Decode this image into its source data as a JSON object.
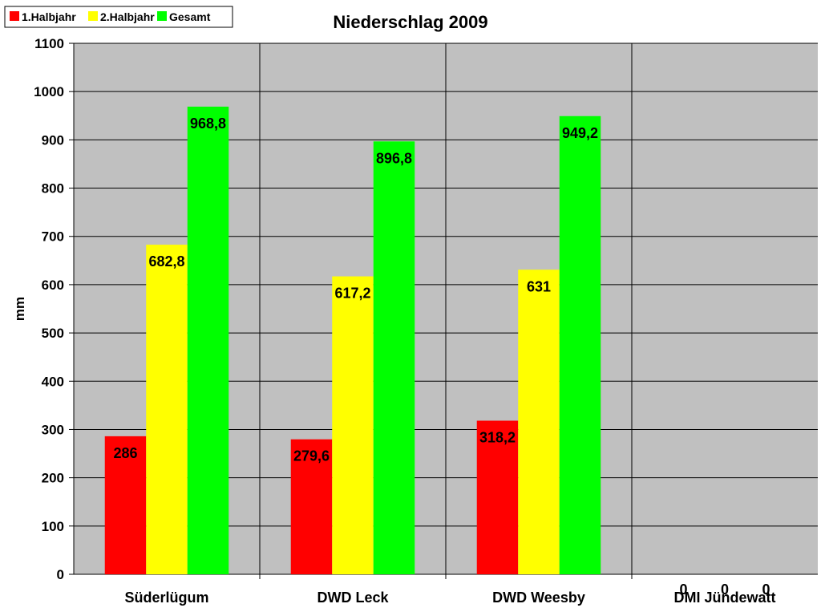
{
  "chart_data": {
    "type": "bar",
    "title": "Niederschlag 2009",
    "ylabel": "mm",
    "xlabel": "",
    "ylim": [
      0,
      1100
    ],
    "ytick_step": 100,
    "grid": true,
    "legend_position": "top-left",
    "plot_background": "#c0c0c0",
    "categories": [
      "Süderlügum",
      "DWD Leck",
      "DWD Weesby",
      "DMI Jündewatt"
    ],
    "series": [
      {
        "name": "1.Halbjahr",
        "color": "#ff0000",
        "values": [
          286,
          279.6,
          318.2,
          0
        ],
        "labels": [
          "286",
          "279,6",
          "318,2",
          "0"
        ]
      },
      {
        "name": "2.Halbjahr",
        "color": "#ffff00",
        "values": [
          682.8,
          617.2,
          631,
          0
        ],
        "labels": [
          "682,8",
          "617,2",
          "631",
          "0"
        ]
      },
      {
        "name": "Gesamt",
        "color": "#00ff00",
        "values": [
          968.8,
          896.8,
          949.2,
          0
        ],
        "labels": [
          "968,8",
          "896,8",
          "949,2",
          "0"
        ]
      }
    ]
  }
}
